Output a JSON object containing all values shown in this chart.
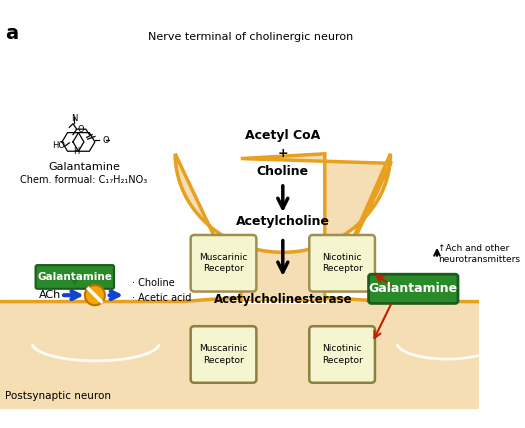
{
  "title_label": "a",
  "nerve_terminal_label": "Nerve terminal of cholinergic neuron",
  "postsynaptic_label": "Postsynaptic neuron",
  "acetyl_coa_label": "Acetyl CoA\n+\nCholine",
  "acetylcholine_label": "Acetylcholine",
  "acetylcholinesterase_label": "Acetylcholinesterase",
  "muscarinic_label": "Muscarinic\nReceptor",
  "nicotinic_label": "Nicotinic\nReceptor",
  "galantamine_left_label": "Galantamine",
  "galantamine_right_label": "Galantamine",
  "ach_label": "ACh",
  "choline_acetic_label": "· Choline\n· Acetic acid",
  "ach_other_label": "↑Ach and other\nneurotransmitters",
  "galantamine_chem_label": "Galantamine",
  "chem_formula_label": "Chem. formual: C₁₇H₂₁NO₃",
  "bg_color": "#ffffff",
  "neuron_fill": "#f5deb3",
  "neuron_border": "#e8a020",
  "receptor_fill": "#f5f5d0",
  "receptor_border": "#a09050",
  "galantamine_green": "#2a8a2a",
  "galantamine_text_color": "#ffffff",
  "arrow_color": "#1a1a1a",
  "red_arrow_color": "#bb2200",
  "blue_color": "#1144cc"
}
